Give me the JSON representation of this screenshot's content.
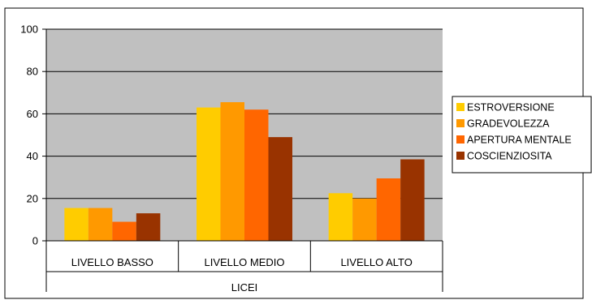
{
  "chart_data": {
    "type": "bar",
    "categories": [
      "LIVELLO BASSO",
      "LIVELLO MEDIO",
      "LIVELLO ALTO"
    ],
    "group_label": "LICEI",
    "series": [
      {
        "name": "ESTROVERSIONE",
        "color": "#FFCC00",
        "values": [
          15.5,
          63,
          22.5
        ]
      },
      {
        "name": "GRADEVOLEZZA",
        "color": "#FF9900",
        "values": [
          15.5,
          65.5,
          20
        ]
      },
      {
        "name": "APERTURA MENTALE",
        "color": "#FF6600",
        "values": [
          9,
          62,
          29.5
        ]
      },
      {
        "name": "COSCIENZIOSITA",
        "color": "#993300",
        "values": [
          13,
          49,
          38.5
        ]
      }
    ],
    "ylim": [
      0,
      100
    ],
    "yticks": [
      0,
      20,
      40,
      60,
      80,
      100
    ],
    "grid": true,
    "plot_background": "#C0C0C0",
    "legend": "right"
  }
}
